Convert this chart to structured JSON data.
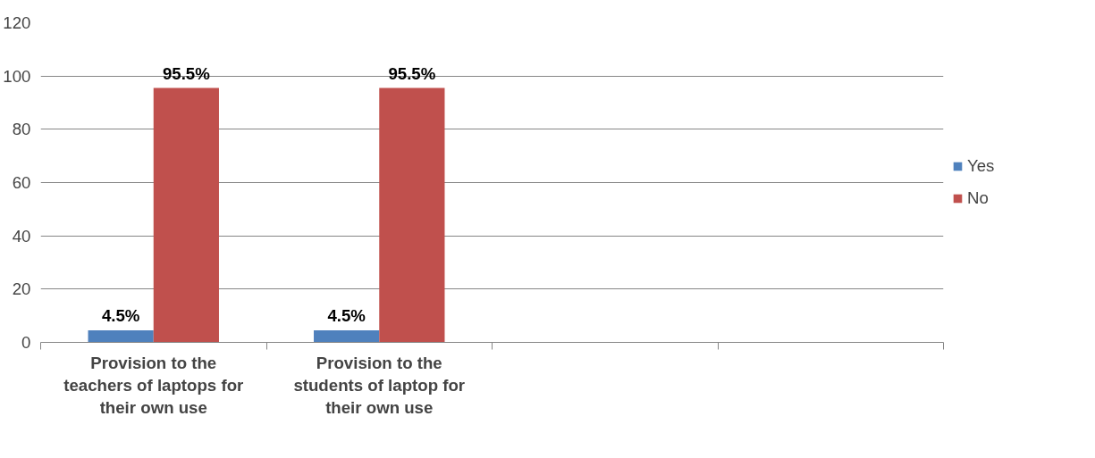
{
  "chart_data": {
    "type": "bar",
    "categories": [
      "Provision to the teachers of laptops for their own use",
      "Provision to the students of laptop for their own use",
      null,
      null
    ],
    "series": [
      {
        "name": "Yes",
        "color": "#4f81bd",
        "values": [
          4.5,
          4.5,
          null,
          null
        ],
        "value_labels": [
          "4.5%",
          "4.5%",
          null,
          null
        ]
      },
      {
        "name": "No",
        "color": "#c0504d",
        "values": [
          95.5,
          95.5,
          null,
          null
        ],
        "value_labels": [
          "95.5%",
          "95.5%",
          null,
          null
        ]
      }
    ],
    "ylim": [
      0,
      120
    ],
    "yticks": [
      0,
      20,
      40,
      60,
      80,
      100,
      120
    ],
    "grid": "y",
    "legend": "right"
  }
}
